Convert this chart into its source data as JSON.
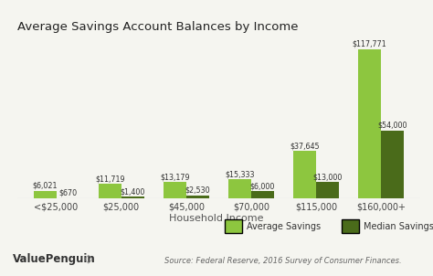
{
  "title": "Average Savings Account Balances by Income",
  "categories": [
    "<$25,000",
    "$25,000",
    "$45,000",
    "$70,000",
    "$115,000",
    "$160,000+"
  ],
  "average_savings": [
    6021,
    11719,
    13179,
    15333,
    37645,
    117771
  ],
  "median_savings": [
    670,
    1400,
    2530,
    6000,
    13000,
    54000
  ],
  "avg_labels": [
    "$6,021",
    "$11,719",
    "$13,179",
    "$15,333",
    "$37,645",
    "$117,771"
  ],
  "med_labels": [
    "$670",
    "$1,400",
    "$2,530",
    "$6,000",
    "$13,000",
    "$54,000"
  ],
  "avg_color": "#8dc63f",
  "med_color": "#4a6b1a",
  "xlabel": "Household Income",
  "ylim": [
    0,
    135000
  ],
  "title_fontsize": 9.5,
  "label_fontsize": 5.8,
  "tick_fontsize": 7,
  "source_text": "Source: Federal Reserve, 2016 Survey of Consumer Finances.",
  "legend_avg": "Average Savings",
  "legend_med": "Median Savings",
  "watermark": "ValuePenguin",
  "bg_color": "#f5f5f0",
  "bar_width": 0.35
}
